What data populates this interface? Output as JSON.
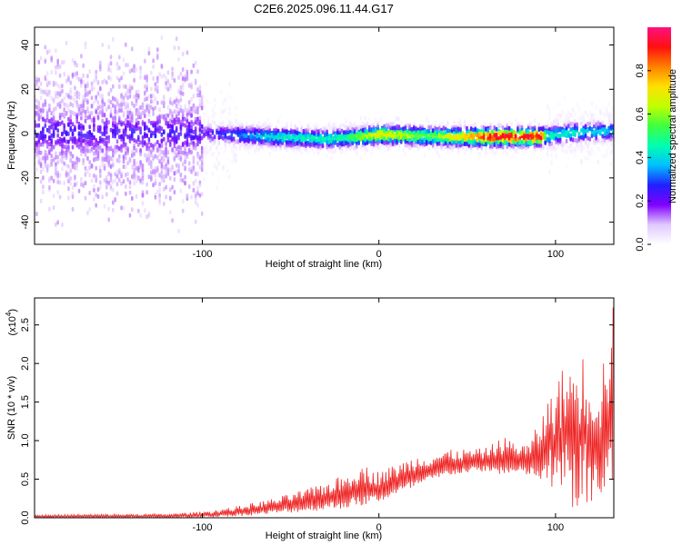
{
  "title": "C2E6.2025.096.11.44.G17",
  "chart_data": [
    {
      "type": "heatmap",
      "xlabel": "Height of straight line (km)",
      "ylabel": "Frequency (Hz)",
      "xlim": [
        -195,
        133
      ],
      "ylim": [
        -50,
        48
      ],
      "xticks": [
        -100,
        0,
        100
      ],
      "yticks": [
        -40,
        -20,
        0,
        20,
        40
      ],
      "colorbar": {
        "label": "Normalized spectral amplitude",
        "range": [
          0,
          1
        ],
        "ticks": [
          0.0,
          0.2,
          0.4,
          0.6,
          0.8
        ],
        "colors": [
          "#ffffff",
          "#e0c8ff",
          "#8000ff",
          "#2020ff",
          "#00c0ff",
          "#00ffb0",
          "#40ff40",
          "#c0ff00",
          "#ffe000",
          "#ff8000",
          "#ff1010",
          "#ff1080"
        ]
      },
      "ridge": [
        {
          "x": -195,
          "y": 0.5
        },
        {
          "x": -150,
          "y": 0.3
        },
        {
          "x": -100,
          "y": 0.0
        },
        {
          "x": -60,
          "y": -1.5
        },
        {
          "x": -30,
          "y": -2.5
        },
        {
          "x": -10,
          "y": -1.5
        },
        {
          "x": 0,
          "y": -0.5
        },
        {
          "x": 20,
          "y": -1.0
        },
        {
          "x": 40,
          "y": -1.5
        },
        {
          "x": 65,
          "y": -1.5
        },
        {
          "x": 92,
          "y": -1.5
        },
        {
          "x": 110,
          "y": 0.5
        },
        {
          "x": 133,
          "y": 1.0
        }
      ],
      "amplitude_profile": [
        {
          "x": -195,
          "a": 0.12
        },
        {
          "x": -100,
          "a": 0.18
        },
        {
          "x": -90,
          "a": 0.25
        },
        {
          "x": -60,
          "a": 0.4
        },
        {
          "x": -20,
          "a": 0.45
        },
        {
          "x": 0,
          "a": 0.7
        },
        {
          "x": 30,
          "a": 0.55
        },
        {
          "x": 65,
          "a": 0.92
        },
        {
          "x": 92,
          "a": 0.92
        },
        {
          "x": 95,
          "a": 0.45
        },
        {
          "x": 133,
          "a": 0.35
        }
      ]
    },
    {
      "type": "line",
      "xlabel": "Height of straight line (km)",
      "ylabel": "SNR (10 * v/v)",
      "scale_label": "(x10",
      "scale_exponent": "4",
      "line_color": "#ee2222",
      "xlim": [
        -195,
        133
      ],
      "ylim": [
        0,
        2.85
      ],
      "xticks": [
        -100,
        0,
        100
      ],
      "yticks": [
        0.0,
        0.5,
        1.0,
        1.5,
        2.0,
        2.5
      ],
      "envelope": [
        {
          "x": -195,
          "lo": 0.0,
          "hi": 0.04
        },
        {
          "x": -120,
          "lo": 0.0,
          "hi": 0.05
        },
        {
          "x": -100,
          "lo": 0.0,
          "hi": 0.08
        },
        {
          "x": -80,
          "lo": 0.02,
          "hi": 0.15
        },
        {
          "x": -60,
          "lo": 0.05,
          "hi": 0.25
        },
        {
          "x": -40,
          "lo": 0.08,
          "hi": 0.38
        },
        {
          "x": -20,
          "lo": 0.12,
          "hi": 0.55
        },
        {
          "x": -10,
          "lo": 0.15,
          "hi": 0.7
        },
        {
          "x": 0,
          "lo": 0.2,
          "hi": 0.6
        },
        {
          "x": 20,
          "lo": 0.38,
          "hi": 0.8
        },
        {
          "x": 40,
          "lo": 0.55,
          "hi": 0.88
        },
        {
          "x": 60,
          "lo": 0.6,
          "hi": 0.9
        },
        {
          "x": 70,
          "lo": 0.55,
          "hi": 1.05
        },
        {
          "x": 85,
          "lo": 0.55,
          "hi": 0.95
        },
        {
          "x": 95,
          "lo": 0.4,
          "hi": 1.5
        },
        {
          "x": 105,
          "lo": 0.15,
          "hi": 2.0
        },
        {
          "x": 115,
          "lo": 0.05,
          "hi": 2.15
        },
        {
          "x": 125,
          "lo": 0.05,
          "hi": 1.9
        },
        {
          "x": 133,
          "lo": 0.1,
          "hi": 2.8
        }
      ]
    }
  ]
}
